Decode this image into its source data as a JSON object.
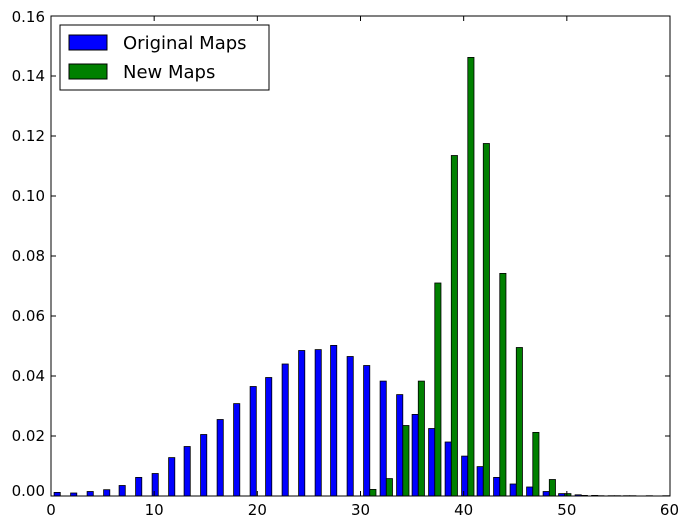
{
  "chart_data": {
    "type": "bar",
    "title": "",
    "xlabel": "",
    "ylabel": "",
    "xlim": [
      0,
      60
    ],
    "ylim": [
      0,
      0.16
    ],
    "x_ticks": [
      0,
      10,
      20,
      30,
      40,
      50,
      60
    ],
    "x_tick_labels": [
      "0",
      "10",
      "20",
      "30",
      "40",
      "50",
      "60"
    ],
    "y_ticks": [
      0.0,
      0.02,
      0.04,
      0.06,
      0.08,
      0.1,
      0.12,
      0.14,
      0.16
    ],
    "y_tick_labels": [
      "0.00",
      "0.02",
      "0.04",
      "0.06",
      "0.08",
      "0.10",
      "0.12",
      "0.14",
      "0.16"
    ],
    "grid": false,
    "legend_position": "top-left",
    "bar_width": 0.6,
    "series": [
      {
        "name": "Original Maps",
        "color": "#0000ff",
        "x": [
          0.3,
          1.9,
          3.5,
          5.1,
          6.6,
          8.2,
          9.8,
          11.4,
          12.9,
          14.5,
          16.1,
          17.7,
          19.3,
          20.8,
          22.4,
          24.0,
          25.6,
          27.1,
          28.7,
          30.3,
          31.9,
          33.5,
          35.0,
          36.6,
          38.2,
          39.8,
          41.3,
          42.9,
          44.5,
          46.1,
          47.7,
          49.2,
          50.8,
          52.4,
          54.0,
          55.5,
          57.1,
          58.7
        ],
        "values": [
          0.0012,
          0.001,
          0.0015,
          0.0021,
          0.0035,
          0.0062,
          0.0075,
          0.0128,
          0.0165,
          0.0205,
          0.0255,
          0.0308,
          0.0365,
          0.0395,
          0.044,
          0.0485,
          0.0488,
          0.0502,
          0.0465,
          0.0435,
          0.0383,
          0.0338,
          0.0272,
          0.0225,
          0.018,
          0.0133,
          0.0098,
          0.0062,
          0.004,
          0.003,
          0.0015,
          0.0008,
          0.0004,
          0.0002,
          0.0001,
          0.0001,
          0.0,
          0.0
        ]
      },
      {
        "name": "New Maps",
        "color": "#008000",
        "x": [
          30.9,
          32.5,
          34.1,
          35.6,
          37.2,
          38.8,
          40.4,
          41.9,
          43.5,
          45.1,
          46.7,
          48.3,
          49.8,
          51.4,
          53.0,
          54.6,
          56.1,
          57.7,
          59.3
        ],
        "values": [
          0.0022,
          0.0058,
          0.0235,
          0.0383,
          0.071,
          0.1135,
          0.1462,
          0.1175,
          0.0742,
          0.0495,
          0.0212,
          0.0055,
          0.0008,
          0.0002,
          0.0001,
          0.0001,
          0.0001,
          0.0001,
          0.0001
        ]
      }
    ]
  }
}
